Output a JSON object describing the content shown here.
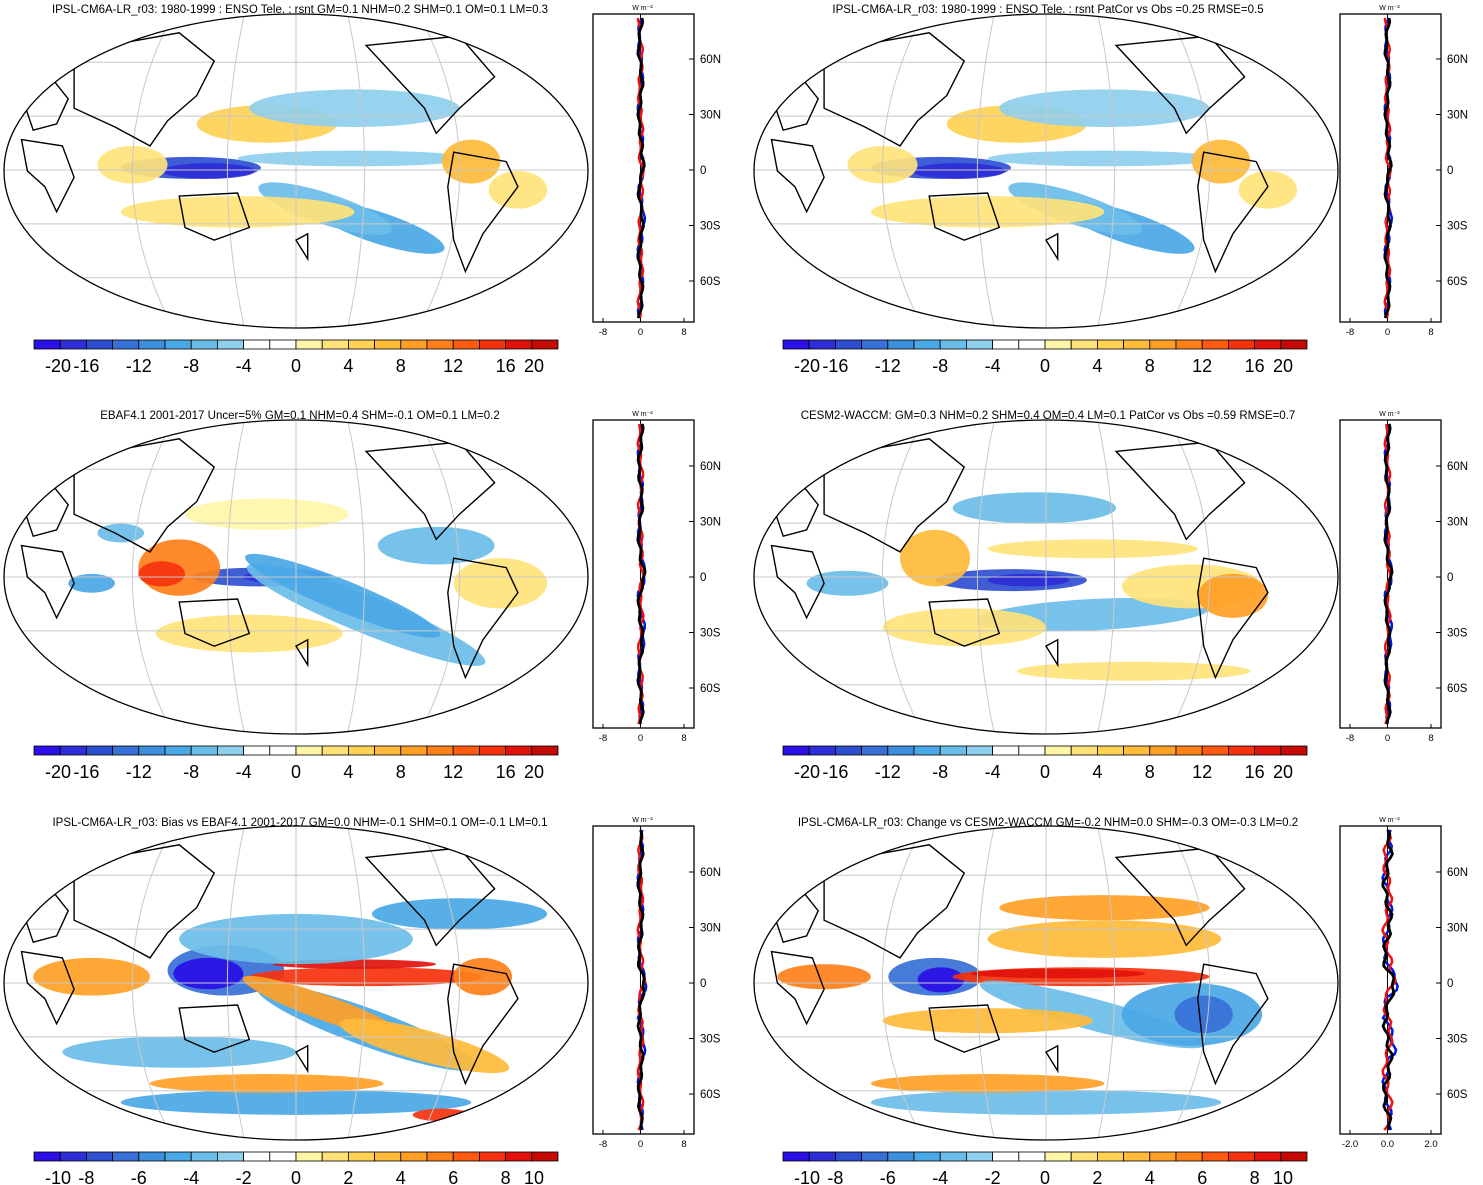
{
  "panels": [
    {
      "title": "IPSL-CM6A-LR_r03: 1980-1999 : ENSO Tele. : rsnt GM=0.1 NHM=0.2 SHM=0.1 OM=0.1 LM=0.3",
      "scale": "a",
      "pattern": 0
    },
    {
      "title": "IPSL-CM6A-LR_r03: 1980-1999 : ENSO Tele. : rsnt PatCor vs Obs =0.25 RMSE=0.5",
      "scale": "a",
      "pattern": 0
    },
    {
      "title": "EBAF4.1 2001-2017 Uncer=5% GM=0.1 NHM=0.4 SHM=-0.1 OM=0.1 LM=0.2",
      "scale": "a",
      "pattern": 1
    },
    {
      "title": "CESM2-WACCM: GM=0.3 NHM=0.2 SHM=0.4 OM=0.4 LM=0.1 PatCor vs Obs =0.59 RMSE=0.7",
      "scale": "a",
      "pattern": 2
    },
    {
      "title": "IPSL-CM6A-LR_r03: Bias vs EBAF4.1 2001-2017 GM=0.0 NHM=-0.1 SHM=0.1 OM=-0.1 LM=0.1",
      "scale": "b",
      "pattern": 3
    },
    {
      "title": "IPSL-CM6A-LR_r03: Change vs CESM2-WACCM GM=-0.2 NHM=0.0 SHM=-0.3 OM=-0.3 LM=0.2",
      "scale": "b",
      "pattern": 4
    }
  ],
  "units_label": "W m⁻²",
  "lat_ticks": [
    "60N",
    "30N",
    "0",
    "30S",
    "60S"
  ],
  "profile_x_ticks": [
    [
      "-8",
      "0",
      "8"
    ],
    [
      "-8",
      "0",
      "8"
    ],
    [
      "-8",
      "0",
      "8"
    ],
    [
      "-8",
      "0",
      "8"
    ],
    [
      "-8",
      "0",
      "8"
    ],
    [
      "-2.0",
      "0.0",
      "2.0"
    ]
  ],
  "colorbar_labels": {
    "a": [
      "-20",
      "-16",
      "-12",
      "-8",
      "-4",
      "0",
      "4",
      "8",
      "12",
      "16",
      "20"
    ],
    "b": [
      "-10",
      "-8",
      "-6",
      "-4",
      "-2",
      "0",
      "2",
      "4",
      "6",
      "8",
      "10"
    ]
  },
  "colorbar_colors": [
    "#2a0fe6",
    "#2e2ed8",
    "#2f4fd1",
    "#3770d6",
    "#3d8fdb",
    "#4aa8e6",
    "#6bbde9",
    "#8ecfee",
    "#ffffff",
    "#ffffff",
    "#fff6a8",
    "#ffe37a",
    "#ffd154",
    "#ffbb39",
    "#ff9f26",
    "#ff8019",
    "#ff5a12",
    "#f5320d",
    "#e0120b",
    "#c50a06"
  ],
  "profile_colors": {
    "model": "#0018e6",
    "obs": "#ee1111",
    "zonal_mean": "#000000"
  },
  "chart_data": [
    {
      "type": "heatmap",
      "title": "IPSL-CM6A-LR_r03: 1980-1999 : ENSO Tele. : rsnt GM=0.1 NHM=0.2 SHM=0.1 OM=0.1 LM=0.3",
      "projection": "Robinson (Pacific-centred)",
      "colorbar_range": [
        -20,
        20
      ],
      "side_profile": "zonal mean (W m⁻²), x range [-8, 8]"
    },
    {
      "type": "heatmap",
      "title": "IPSL-CM6A-LR_r03: 1980-1999 : ENSO Tele. : rsnt PatCor vs Obs =0.25 RMSE=0.5",
      "projection": "Robinson (Pacific-centred)",
      "colorbar_range": [
        -20,
        20
      ],
      "side_profile": "zonal mean (W m⁻²), x range [-8, 8]"
    },
    {
      "type": "heatmap",
      "title": "EBAF4.1 2001-2017 Uncer=5% GM=0.1 NHM=0.4 SHM=-0.1 OM=0.1 LM=0.2",
      "projection": "Robinson (Pacific-centred)",
      "colorbar_range": [
        -20,
        20
      ],
      "side_profile": "zonal mean (W m⁻²), x range [-8, 8]"
    },
    {
      "type": "heatmap",
      "title": "CESM2-WACCM: GM=0.3 NHM=0.2 SHM=0.4 OM=0.4 LM=0.1 PatCor vs Obs =0.59 RMSE=0.7",
      "projection": "Robinson (Pacific-centred)",
      "colorbar_range": [
        -20,
        20
      ],
      "side_profile": "zonal mean (W m⁻²), x range [-8, 8]"
    },
    {
      "type": "heatmap",
      "title": "IPSL-CM6A-LR_r03: Bias vs EBAF4.1 2001-2017 GM=0.0 NHM=-0.1 SHM=0.1 OM=-0.1 LM=0.1",
      "projection": "Robinson (Pacific-centred)",
      "colorbar_range": [
        -10,
        10
      ],
      "side_profile": "zonal mean (W m⁻²), x range [-8, 8]"
    },
    {
      "type": "heatmap",
      "title": "IPSL-CM6A-LR_r03: Change vs CESM2-WACCM GM=-0.2 NHM=0.0 SHM=-0.3 OM=-0.3 LM=0.2",
      "projection": "Robinson (Pacific-centred)",
      "colorbar_range": [
        -10,
        10
      ],
      "side_profile": "zonal mean (W m⁻²), x range [-2.0, 2.0]"
    }
  ]
}
